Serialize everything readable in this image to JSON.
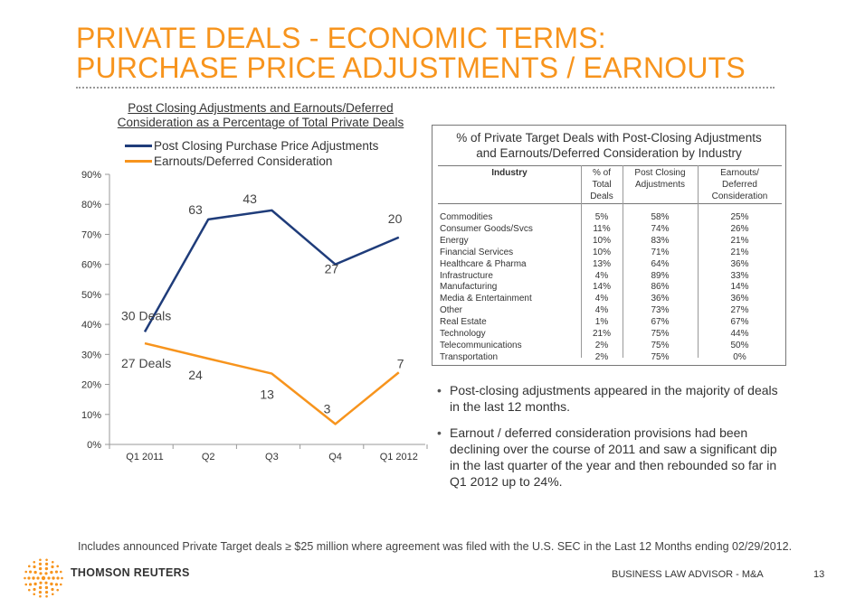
{
  "slide": {
    "title_line1": "PRIVATE DEALS - ECONOMIC TERMS:",
    "title_line2": "PURCHASE PRICE ADJUSTMENTS / EARNOUTS",
    "footnote": "Includes announced Private Target deals ≥ $25 million where agreement was filed with the U.S. SEC in the Last 12 Months ending 02/29/2012.",
    "brand": "THOMSON REUTERS",
    "footer_label": "BUSINESS LAW ADVISOR - M&A",
    "page_number": "13",
    "accent_color": "#f7941d"
  },
  "chart_data": {
    "type": "line",
    "title_line1": "Post Closing Adjustments and Earnouts/Deferred",
    "title_line2": "Consideration as a Percentage of Total Private Deals",
    "categories": [
      "Q1 2011",
      "Q2",
      "Q3",
      "Q4",
      "Q1 2012"
    ],
    "ylim": [
      0,
      90
    ],
    "yticks": [
      "0%",
      "10%",
      "20%",
      "30%",
      "40%",
      "50%",
      "60%",
      "70%",
      "80%",
      "90%"
    ],
    "series": [
      {
        "name": "Post Closing Purchase Price Adjustments",
        "color": "#1f3c7a",
        "values": [
          37.5,
          75,
          78,
          60,
          69
        ],
        "labels": [
          "30 Deals",
          "63",
          "43",
          "27",
          "20"
        ]
      },
      {
        "name": "Earnouts/Deferred Consideration",
        "color": "#f7941d",
        "values": [
          33.7,
          28.6,
          23.6,
          6.8,
          24
        ],
        "labels": [
          "27 Deals",
          "24",
          "13",
          "3",
          "7"
        ]
      }
    ]
  },
  "table": {
    "caption_line1": "% of Private Target Deals with Post-Closing Adjustments",
    "caption_line2": "and Earnouts/Deferred Consideration by Industry",
    "headers": {
      "industry": "Industry",
      "total_line1": "% of",
      "total_line2": "Total",
      "total_line3": "Deals",
      "adj_line1": "Post Closing",
      "adj_line2": "Adjustments",
      "earn_line1": "Earnouts/",
      "earn_line2": "Deferred",
      "earn_line3": "Consideration"
    },
    "rows": [
      {
        "industry": "Commodities",
        "total": "5%",
        "adj": "58%",
        "earn": "25%"
      },
      {
        "industry": "Consumer Goods/Svcs",
        "total": "11%",
        "adj": "74%",
        "earn": "26%"
      },
      {
        "industry": "Energy",
        "total": "10%",
        "adj": "83%",
        "earn": "21%"
      },
      {
        "industry": "Financial Services",
        "total": "10%",
        "adj": "71%",
        "earn": "21%"
      },
      {
        "industry": "Healthcare & Pharma",
        "total": "13%",
        "adj": "64%",
        "earn": "36%"
      },
      {
        "industry": "Infrastructure",
        "total": "4%",
        "adj": "89%",
        "earn": "33%"
      },
      {
        "industry": "Manufacturing",
        "total": "14%",
        "adj": "86%",
        "earn": "14%"
      },
      {
        "industry": "Media & Entertainment",
        "total": "4%",
        "adj": "36%",
        "earn": "36%"
      },
      {
        "industry": "Other",
        "total": "4%",
        "adj": "73%",
        "earn": "27%"
      },
      {
        "industry": "Real Estate",
        "total": "1%",
        "adj": "67%",
        "earn": "67%"
      },
      {
        "industry": "Technology",
        "total": "21%",
        "adj": "75%",
        "earn": "44%"
      },
      {
        "industry": "Telecommunications",
        "total": "2%",
        "adj": "75%",
        "earn": "50%"
      },
      {
        "industry": "Transportation",
        "total": "2%",
        "adj": "75%",
        "earn": "0%"
      }
    ]
  },
  "bullets": [
    "Post-closing adjustments appeared in the majority of deals in the last 12 months.",
    "Earnout / deferred consideration provisions had been declining over the course of 2011 and saw a significant dip in the last quarter of the year and then rebounded so far in Q1 2012 up to 24%."
  ]
}
